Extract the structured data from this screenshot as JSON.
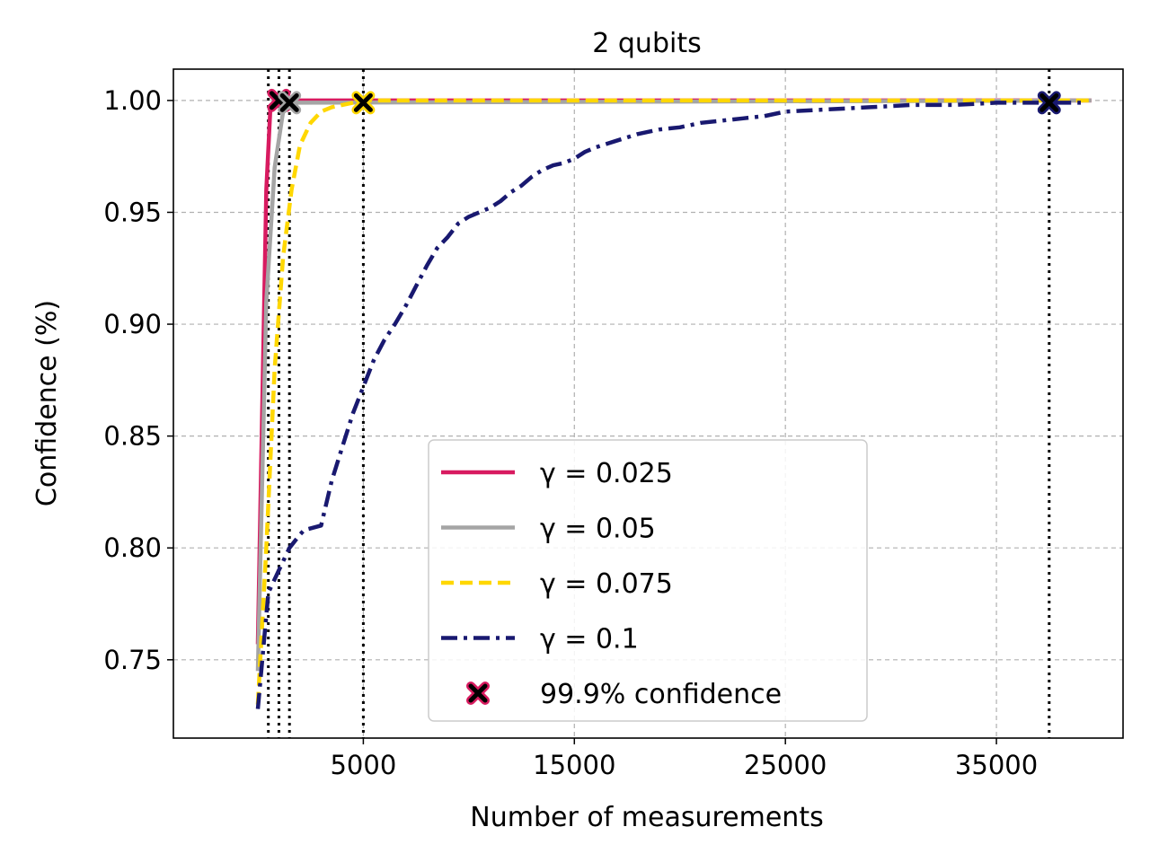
{
  "chart_data": {
    "type": "line",
    "title": "2 qubits",
    "xlabel": "Number of measurements",
    "ylabel": "Confidence (%)",
    "xlim": [
      -4000,
      41000
    ],
    "ylim": [
      0.715,
      1.014
    ],
    "xticks": [
      5000,
      15000,
      25000,
      35000
    ],
    "xtick_labels": [
      "5000",
      "15000",
      "25000",
      "35000"
    ],
    "yticks": [
      0.75,
      0.8,
      0.85,
      0.9,
      0.95,
      1.0
    ],
    "ytick_labels": [
      "0.75",
      "0.80",
      "0.85",
      "0.90",
      "0.95",
      "1.00"
    ],
    "grid": true,
    "legend_position": "lower center",
    "series": [
      {
        "name": "γ = 0.025",
        "legend_label": "γ = 0.025",
        "color": "#d81b60",
        "style": "solid",
        "x": [
          0,
          400,
          600,
          1000,
          39500
        ],
        "y": [
          0.757,
          0.96,
          0.997,
          1.0,
          1.0
        ]
      },
      {
        "name": "γ = 0.05",
        "legend_label": "γ = 0.05",
        "color": "#a5a5a5",
        "style": "solid",
        "x": [
          0,
          400,
          800,
          1200,
          1500,
          39500
        ],
        "y": [
          0.745,
          0.91,
          0.97,
          0.995,
          0.999,
          1.0
        ]
      },
      {
        "name": "γ = 0.075",
        "legend_label": "γ = 0.075",
        "color": "#ffd700",
        "style": "dashed",
        "x": [
          0,
          400,
          800,
          1200,
          1600,
          2000,
          2500,
          3000,
          3500,
          4000,
          4500,
          5000,
          39500
        ],
        "y": [
          0.73,
          0.8,
          0.88,
          0.93,
          0.96,
          0.98,
          0.99,
          0.995,
          0.997,
          0.998,
          0.999,
          1.0,
          1.0
        ]
      },
      {
        "name": "γ = 0.1",
        "legend_label": "γ = 0.1",
        "color": "#191970",
        "style": "dashdot",
        "x": [
          0,
          500,
          1000,
          1500,
          2000,
          2200,
          3000,
          3500,
          4000,
          4500,
          5000,
          5500,
          6000,
          6500,
          7000,
          7500,
          8000,
          8500,
          9000,
          9500,
          10000,
          11000,
          11500,
          12000,
          12500,
          13000,
          13500,
          14000,
          14500,
          15000,
          15500,
          16000,
          17000,
          18000,
          19000,
          20000,
          20500,
          21000,
          22000,
          23000,
          24000,
          25000,
          27000,
          29000,
          31000,
          33000,
          35000,
          37000,
          39000
        ],
        "y": [
          0.728,
          0.78,
          0.79,
          0.8,
          0.806,
          0.808,
          0.81,
          0.83,
          0.845,
          0.86,
          0.872,
          0.884,
          0.893,
          0.9,
          0.908,
          0.917,
          0.926,
          0.934,
          0.939,
          0.945,
          0.948,
          0.952,
          0.955,
          0.959,
          0.962,
          0.966,
          0.969,
          0.971,
          0.972,
          0.974,
          0.977,
          0.979,
          0.982,
          0.985,
          0.987,
          0.988,
          0.989,
          0.99,
          0.991,
          0.992,
          0.993,
          0.995,
          0.996,
          0.997,
          0.998,
          0.998,
          0.999,
          0.999,
          0.999
        ]
      }
    ],
    "confidence_markers": {
      "legend_label": "99.9% confidence",
      "points": [
        {
          "x": 1000,
          "y": 1.0,
          "color": "#d81b60"
        },
        {
          "x": 1500,
          "y": 0.999,
          "color": "#a5a5a5"
        },
        {
          "x": 5000,
          "y": 0.999,
          "color": "#ffd700"
        },
        {
          "x": 37500,
          "y": 0.999,
          "color": "#191970"
        }
      ],
      "vlines_x": [
        500,
        1000,
        1500,
        5000,
        37500
      ]
    }
  }
}
